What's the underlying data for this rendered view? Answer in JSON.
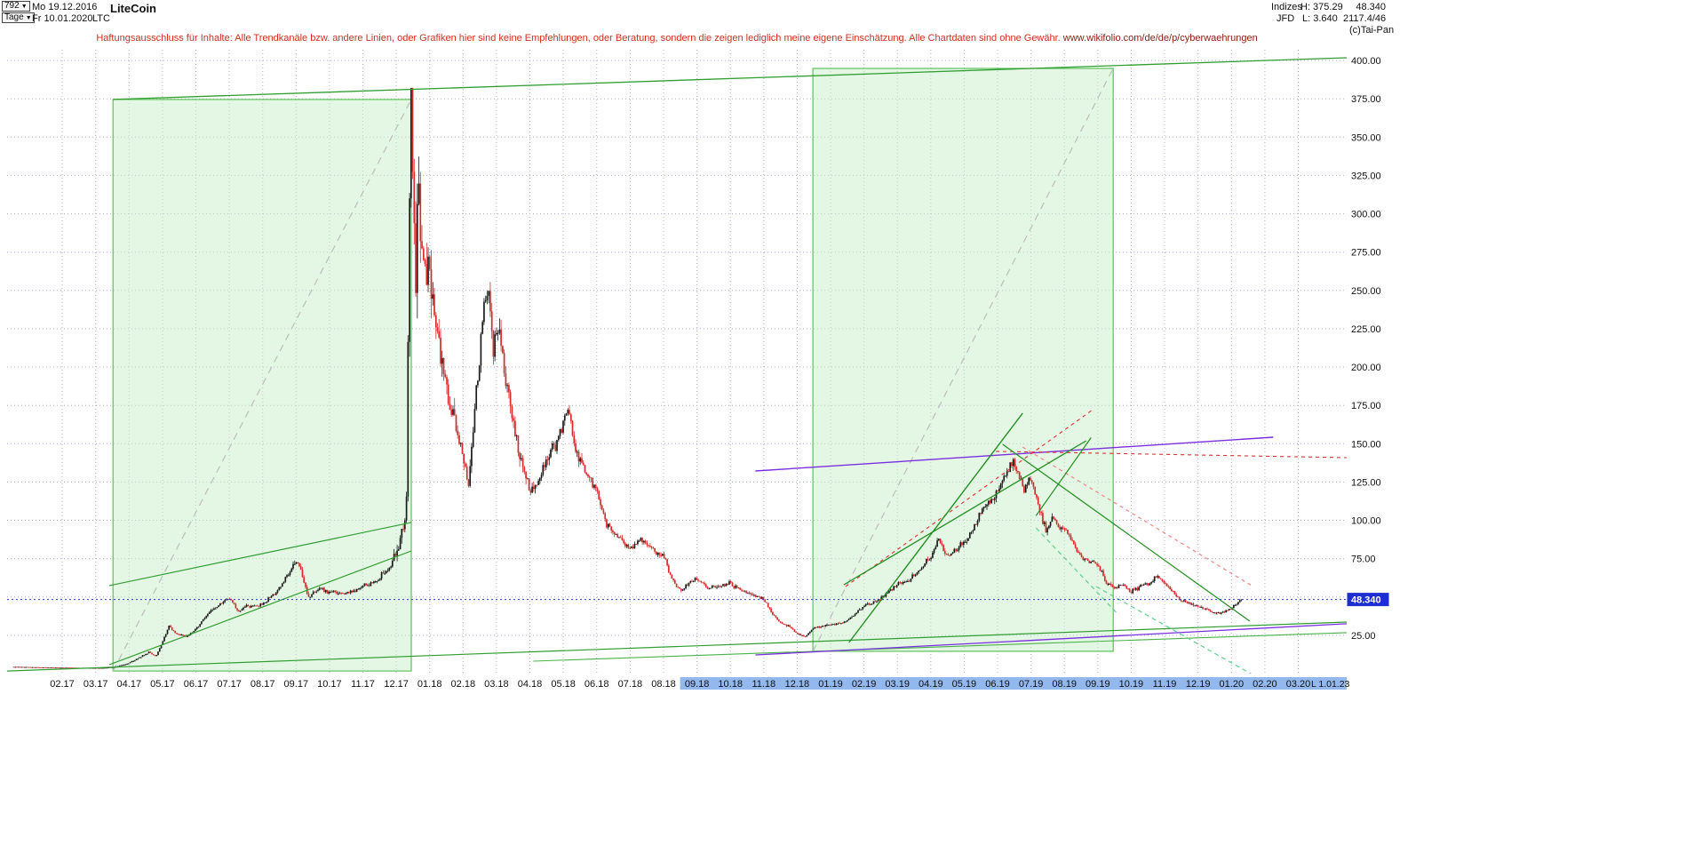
{
  "header": {
    "bars_count": "792",
    "range_start": "Mo 19.12.2016",
    "timeframe": "Tage",
    "range_end": "Fr 10.01.2020",
    "symbol": "LTC",
    "instrument": "LiteCoin",
    "right": {
      "group": "Indizes",
      "high": "H: 375.29",
      "last": "48.340",
      "provider": "JFD",
      "low": "L: 3.640",
      "extra": "2117.4/46",
      "copyright": "(c)Tai-Pan"
    }
  },
  "disclaimer": {
    "text": "Haftungsausschluss für Inhalte: Alle Trendkanäle bzw. andere Linien, oder Grafiken hier sind keine Empfehlungen, oder Beratung, sondern die zeigen lediglich meine eigene Einschätzung. Alle Chartdaten sind ohne Gewähr.",
    "link": "www.wikifolio.com/de/de/p/cyberwaehrungen"
  },
  "chart_data": {
    "type": "candlestick",
    "title": "LiteCoin (LTC) Tageskerzen 19.12.2016 - 10.01.2020",
    "bars": 792,
    "high": 375.29,
    "low": 3.64,
    "last": 48.34,
    "last_label": "48.340",
    "axis_note": "L 1.01.23",
    "t_range": [
      -0.2,
      39.9
    ],
    "t_last": 36.75,
    "ylim": [
      0,
      407
    ],
    "first_label_t": 1.45,
    "highlight_from": "09.18",
    "price_ticks": [
      25,
      50,
      75,
      100,
      125,
      150,
      175,
      200,
      225,
      250,
      275,
      300,
      325,
      350,
      375,
      400
    ],
    "month_labels": [
      "02.17",
      "03.17",
      "04.17",
      "05.17",
      "06.17",
      "07.17",
      "08.17",
      "09.17",
      "10.17",
      "11.17",
      "12.17",
      "01.18",
      "02.18",
      "03.18",
      "04.18",
      "05.18",
      "06.18",
      "07.18",
      "08.18",
      "09.18",
      "10.18",
      "11.18",
      "12.18",
      "01.19",
      "02.19",
      "03.19",
      "04.19",
      "05.19",
      "06.19",
      "07.19",
      "08.19",
      "09.19",
      "10.19",
      "11.19",
      "12.19",
      "01.20",
      "02.20",
      "03.20"
    ],
    "anchors": [
      [
        0,
        4.4
      ],
      [
        0.8,
        4.1
      ],
      [
        1.45,
        3.9
      ],
      [
        2.1,
        3.75
      ],
      [
        2.6,
        3.7
      ],
      [
        3.0,
        4.3
      ],
      [
        3.45,
        7
      ],
      [
        3.8,
        11
      ],
      [
        4.05,
        14
      ],
      [
        4.25,
        11
      ],
      [
        4.5,
        23
      ],
      [
        4.65,
        31
      ],
      [
        4.85,
        26
      ],
      [
        5.15,
        24
      ],
      [
        5.45,
        29
      ],
      [
        5.8,
        39
      ],
      [
        6.1,
        44
      ],
      [
        6.45,
        50
      ],
      [
        6.7,
        41
      ],
      [
        7.0,
        44
      ],
      [
        7.45,
        45
      ],
      [
        7.8,
        52
      ],
      [
        8.1,
        61
      ],
      [
        8.45,
        75
      ],
      [
        8.6,
        68
      ],
      [
        8.8,
        49
      ],
      [
        9.1,
        56
      ],
      [
        9.45,
        53
      ],
      [
        10.0,
        52
      ],
      [
        10.45,
        57
      ],
      [
        10.9,
        61
      ],
      [
        11.2,
        68
      ],
      [
        11.45,
        78
      ],
      [
        11.6,
        92
      ],
      [
        11.75,
        102
      ],
      [
        11.85,
        330
      ],
      [
        11.9,
        375
      ],
      [
        12.0,
        250
      ],
      [
        12.1,
        300
      ],
      [
        12.2,
        272
      ],
      [
        12.45,
        255
      ],
      [
        12.6,
        235
      ],
      [
        12.8,
        205
      ],
      [
        13.0,
        180
      ],
      [
        13.2,
        168
      ],
      [
        13.45,
        140
      ],
      [
        13.6,
        122
      ],
      [
        13.85,
        185
      ],
      [
        14.05,
        235
      ],
      [
        14.2,
        252
      ],
      [
        14.35,
        210
      ],
      [
        14.5,
        228
      ],
      [
        14.7,
        198
      ],
      [
        14.9,
        172
      ],
      [
        15.15,
        142
      ],
      [
        15.45,
        118
      ],
      [
        15.7,
        126
      ],
      [
        16.0,
        140
      ],
      [
        16.25,
        152
      ],
      [
        16.45,
        166
      ],
      [
        16.6,
        172
      ],
      [
        16.8,
        148
      ],
      [
        17.0,
        136
      ],
      [
        17.2,
        128
      ],
      [
        17.45,
        120
      ],
      [
        17.7,
        99
      ],
      [
        17.95,
        92
      ],
      [
        18.2,
        87
      ],
      [
        18.45,
        81
      ],
      [
        18.75,
        87
      ],
      [
        19.0,
        83
      ],
      [
        19.45,
        76
      ],
      [
        19.7,
        62
      ],
      [
        19.95,
        54
      ],
      [
        20.2,
        59
      ],
      [
        20.45,
        62
      ],
      [
        20.8,
        56
      ],
      [
        21.1,
        57
      ],
      [
        21.45,
        59
      ],
      [
        21.8,
        54
      ],
      [
        22.1,
        51
      ],
      [
        22.45,
        49
      ],
      [
        22.7,
        39
      ],
      [
        22.95,
        33
      ],
      [
        23.2,
        31
      ],
      [
        23.45,
        26
      ],
      [
        23.7,
        24
      ],
      [
        23.95,
        30
      ],
      [
        24.45,
        32
      ],
      [
        24.8,
        33
      ],
      [
        25.1,
        37
      ],
      [
        25.45,
        44
      ],
      [
        25.8,
        47
      ],
      [
        26.1,
        52
      ],
      [
        26.45,
        59
      ],
      [
        26.8,
        61
      ],
      [
        27.1,
        67
      ],
      [
        27.45,
        76
      ],
      [
        27.7,
        89
      ],
      [
        27.9,
        76
      ],
      [
        28.15,
        80
      ],
      [
        28.45,
        86
      ],
      [
        28.75,
        95
      ],
      [
        29.0,
        107
      ],
      [
        29.25,
        114
      ],
      [
        29.45,
        117
      ],
      [
        29.7,
        131
      ],
      [
        29.9,
        139
      ],
      [
        30.05,
        132
      ],
      [
        30.25,
        121
      ],
      [
        30.45,
        127
      ],
      [
        30.7,
        108
      ],
      [
        30.9,
        92
      ],
      [
        31.1,
        101
      ],
      [
        31.3,
        97
      ],
      [
        31.45,
        95
      ],
      [
        31.7,
        86
      ],
      [
        31.95,
        76
      ],
      [
        32.2,
        73
      ],
      [
        32.45,
        71
      ],
      [
        32.7,
        60
      ],
      [
        32.95,
        56
      ],
      [
        33.2,
        58
      ],
      [
        33.45,
        53
      ],
      [
        33.75,
        58
      ],
      [
        34.0,
        58
      ],
      [
        34.2,
        64
      ],
      [
        34.45,
        60
      ],
      [
        34.7,
        53
      ],
      [
        34.95,
        47
      ],
      [
        35.2,
        46
      ],
      [
        35.45,
        44
      ],
      [
        35.7,
        42
      ],
      [
        35.95,
        39
      ],
      [
        36.2,
        40
      ],
      [
        36.45,
        42
      ],
      [
        36.6,
        45
      ],
      [
        36.75,
        48.34
      ]
    ],
    "boxes": [
      {
        "t1": 2.97,
        "p1": 1.7,
        "t2": 11.9,
        "p2": 374.6
      },
      {
        "t1": 23.92,
        "p1": 14.5,
        "t2": 32.91,
        "p2": 394.8
      }
    ],
    "lines": [
      {
        "name": "upper-channel-long",
        "a": [
          2.97,
          374.6
        ],
        "b": [
          39.9,
          401.8
        ],
        "color": "#2f9e2f",
        "w": 1.3
      },
      {
        "name": "channel-2017-upper",
        "a": [
          2.86,
          57.4
        ],
        "b": [
          11.9,
          98.6
        ],
        "color": "#2f9e2f",
        "w": 1.2
      },
      {
        "name": "channel-2017-lower",
        "a": [
          2.86,
          5.8
        ],
        "b": [
          11.9,
          80
        ],
        "color": "#2f9e2f",
        "w": 1.2
      },
      {
        "name": "box1-diagonal",
        "a": [
          2.97,
          1.7
        ],
        "b": [
          11.9,
          374.6
        ],
        "color": "#bcbcbc",
        "w": 1.2,
        "dash": "8,6",
        "layer": "back"
      },
      {
        "name": "box2-diagonal",
        "a": [
          23.92,
          14.5
        ],
        "b": [
          32.91,
          394.8
        ],
        "color": "#bcbcbc",
        "w": 1.2,
        "dash": "8,6",
        "layer": "back"
      },
      {
        "name": "support-long-lower",
        "a": [
          -0.2,
          1.7
        ],
        "b": [
          39.9,
          33.6
        ],
        "color": "#2f9e2f",
        "w": 1.2
      },
      {
        "name": "support-long-inner",
        "a": [
          15.55,
          8.1
        ],
        "b": [
          39.9,
          26.7
        ],
        "color": "#49b349",
        "w": 1.1
      },
      {
        "name": "support-purple-lower",
        "a": [
          22.2,
          12.2
        ],
        "b": [
          39.9,
          32.5
        ],
        "color": "#7b2fe0",
        "w": 1.3
      },
      {
        "name": "resistance-purple-upper",
        "a": [
          22.2,
          132.2
        ],
        "b": [
          37.7,
          154.2
        ],
        "color": "#7b2fe0",
        "w": 1.4
      },
      {
        "name": "resistance-red-horizontal",
        "a": [
          29.4,
          145
        ],
        "b": [
          39.9,
          140.9
        ],
        "color": "#e03030",
        "w": 1.1,
        "dash": "4,4"
      },
      {
        "name": "trend-red-rising",
        "a": [
          24.9,
          56.8
        ],
        "b": [
          32.3,
          172.2
        ],
        "color": "#e03030",
        "w": 1.1,
        "dash": "4,4"
      },
      {
        "name": "trend-red-falling",
        "a": [
          30.2,
          147.8
        ],
        "b": [
          37.1,
          56.8
        ],
        "color": "#ef8585",
        "w": 1.2,
        "dash": "4,4"
      },
      {
        "name": "trend-green-steep",
        "a": [
          25.0,
          20.3
        ],
        "b": [
          30.2,
          169.9
        ],
        "color": "#1f8f1f",
        "w": 1.4
      },
      {
        "name": "trend-green-rising",
        "a": [
          24.85,
          58
        ],
        "b": [
          32.1,
          151.9
        ],
        "color": "#1f8f1f",
        "w": 1.3
      },
      {
        "name": "trend-green-falling",
        "a": [
          29.6,
          149.6
        ],
        "b": [
          37.0,
          34.2
        ],
        "color": "#1f8f1f",
        "w": 1.2
      },
      {
        "name": "trend-green-short",
        "a": [
          30.6,
          103
        ],
        "b": [
          32.25,
          154
        ],
        "color": "#1f8f1f",
        "w": 1.2
      },
      {
        "name": "trend-green-dash-short",
        "a": [
          30.6,
          95
        ],
        "b": [
          33.0,
          40
        ],
        "color": "#5fcf8f",
        "w": 1.2,
        "dash": "5,4"
      },
      {
        "name": "trend-green-dash-long",
        "a": [
          32.4,
          56.8
        ],
        "b": [
          37.4,
          -4.6
        ],
        "color": "#5fcf8f",
        "w": 1.2,
        "dash": "5,4"
      }
    ],
    "colors": {
      "grid": "#a8aecb",
      "box_fill": "#c9efc9",
      "box_stroke": "#5bc05b",
      "up": "#1b1b1b",
      "down": "#d62b2b",
      "last_line": "#2736d8",
      "marker_bg": "#1d2fd0",
      "band": "#92b8ee",
      "axis_text": "#111111"
    }
  }
}
